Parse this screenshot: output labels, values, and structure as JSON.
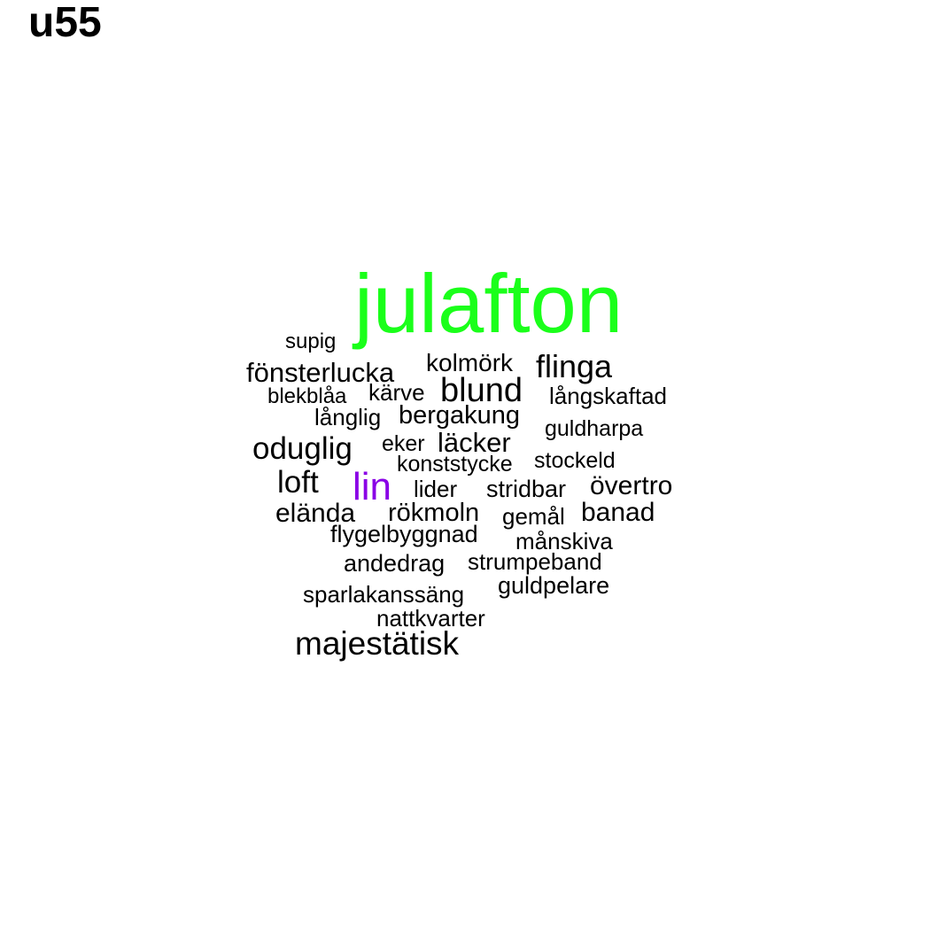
{
  "title": "u55",
  "colors": {
    "default": "#000000",
    "highlight_green": "#1aff1a",
    "highlight_purple": "#8a00e6"
  },
  "words": [
    {
      "text": "julafton",
      "color": "#1aff1a"
    },
    {
      "text": "supig"
    },
    {
      "text": "fönsterlucka"
    },
    {
      "text": "kolmörk"
    },
    {
      "text": "flinga"
    },
    {
      "text": "blekblåa"
    },
    {
      "text": "kärve"
    },
    {
      "text": "blund"
    },
    {
      "text": "långskaftad"
    },
    {
      "text": "långlig"
    },
    {
      "text": "bergakung"
    },
    {
      "text": "guldharpa"
    },
    {
      "text": "oduglig"
    },
    {
      "text": "eker"
    },
    {
      "text": "läcker"
    },
    {
      "text": "konststycke"
    },
    {
      "text": "stockeld"
    },
    {
      "text": "loft"
    },
    {
      "text": "lin",
      "color": "#8a00e6"
    },
    {
      "text": "lider"
    },
    {
      "text": "stridbar"
    },
    {
      "text": "övertro"
    },
    {
      "text": "eländа"
    },
    {
      "text": "rökmoln"
    },
    {
      "text": "gemål"
    },
    {
      "text": "banad"
    },
    {
      "text": "flygelbyggnad"
    },
    {
      "text": "månskiva"
    },
    {
      "text": "andedrag"
    },
    {
      "text": "strumpeband"
    },
    {
      "text": "guldpelare"
    },
    {
      "text": "sparlakanssäng"
    },
    {
      "text": "nattkvarter"
    },
    {
      "text": "majestätisk"
    }
  ]
}
